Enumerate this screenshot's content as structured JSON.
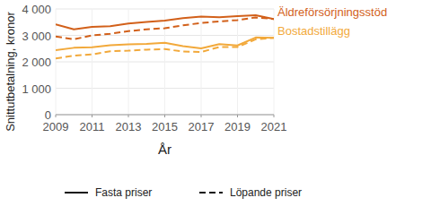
{
  "chart_data": {
    "type": "line",
    "x_label": "År",
    "y_label": "Snittutbetalning, kronor",
    "x": [
      2009,
      2010,
      2011,
      2012,
      2013,
      2014,
      2015,
      2016,
      2017,
      2018,
      2019,
      2020,
      2021
    ],
    "xlim": [
      2009,
      2021
    ],
    "xticks": [
      2009,
      2011,
      2013,
      2015,
      2017,
      2019,
      2021
    ],
    "ylim": [
      0,
      4000
    ],
    "yticks": [
      0,
      {
        "value": 1000,
        "label": "1 000"
      },
      {
        "value": 2000,
        "label": "2 000"
      },
      {
        "value": 3000,
        "label": "3 000"
      },
      {
        "value": 4000,
        "label": "4 000"
      }
    ],
    "grid": true,
    "legend": "bottom",
    "line_styles": [
      {
        "label": "Fasta priser",
        "line_style": "solid"
      },
      {
        "label": "Löpande priser",
        "line_style": "dashed"
      }
    ],
    "series": [
      {
        "name": "Äldreförsörjningsstöd",
        "color": "#d2601a",
        "line_style": "solid",
        "values": [
          3420,
          3230,
          3320,
          3350,
          3450,
          3510,
          3560,
          3650,
          3710,
          3690,
          3730,
          3760,
          3620
        ]
      },
      {
        "name": "Äldreförsörjningsstöd",
        "color": "#d2601a",
        "line_style": "dashed",
        "values": [
          2960,
          2850,
          3000,
          3060,
          3160,
          3230,
          3270,
          3380,
          3470,
          3530,
          3580,
          3680,
          3620
        ]
      },
      {
        "name": "Bostadstillägg",
        "color": "#f2a93b",
        "line_style": "solid",
        "values": [
          2440,
          2530,
          2550,
          2630,
          2660,
          2680,
          2720,
          2590,
          2510,
          2670,
          2620,
          2920,
          2910
        ]
      },
      {
        "name": "Bostadstillägg",
        "color": "#f2a93b",
        "line_style": "dashed",
        "values": [
          2130,
          2230,
          2280,
          2400,
          2420,
          2460,
          2480,
          2390,
          2370,
          2560,
          2560,
          2850,
          2910
        ]
      }
    ]
  }
}
